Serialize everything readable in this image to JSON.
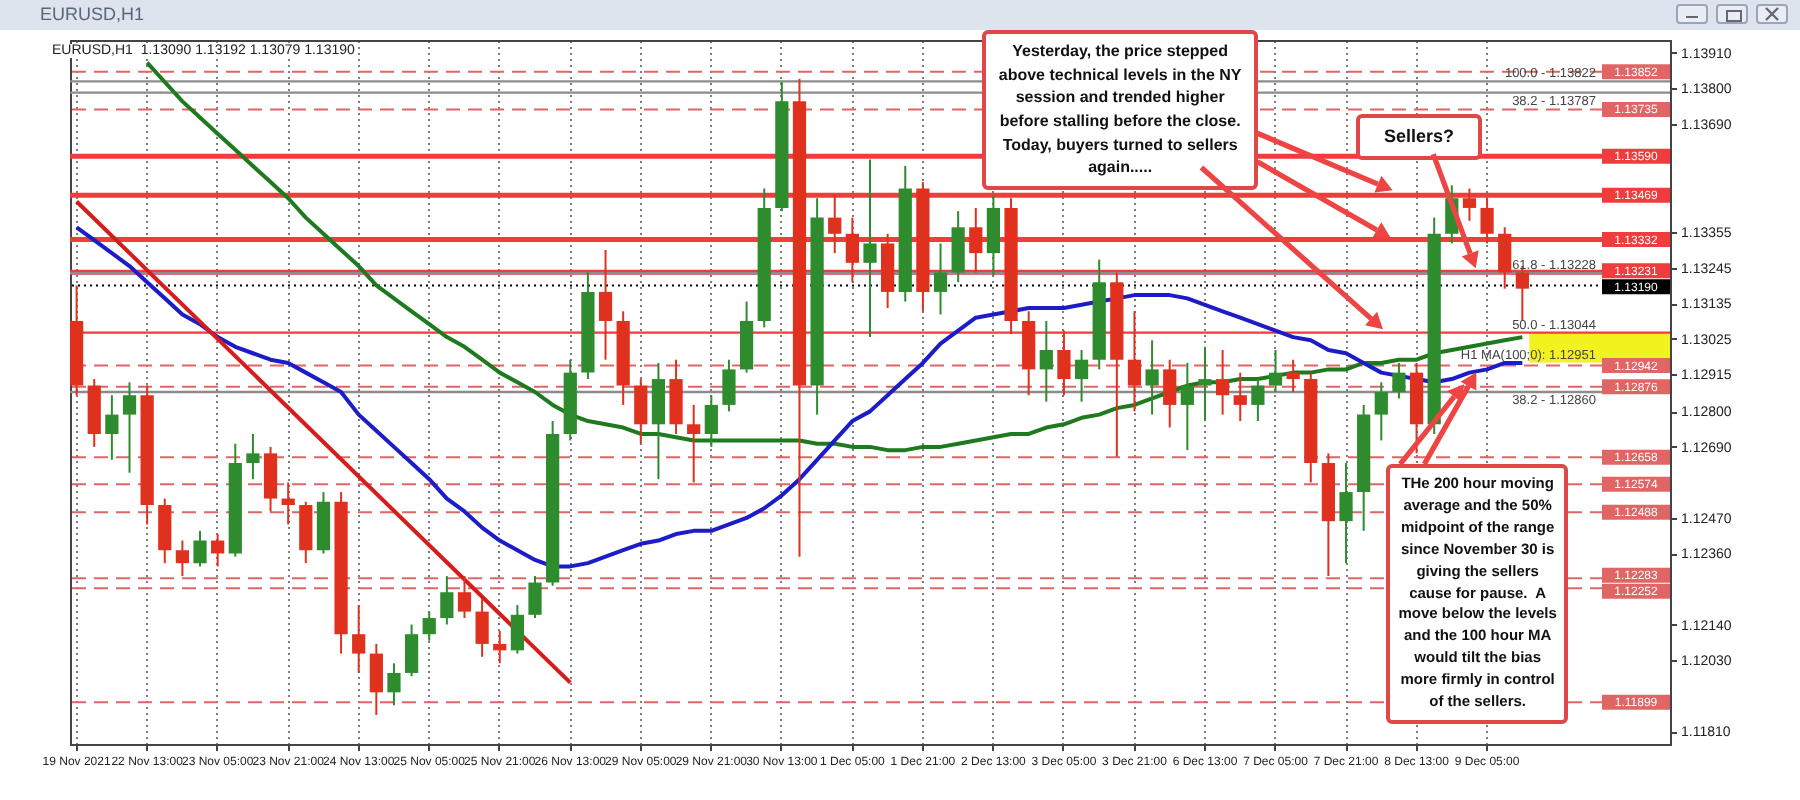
{
  "chart_data": {
    "type": "candlestick",
    "title": "EURUSD,H1",
    "subtitle": "EURUSD,H1  1.13090 1.13192 1.13079 1.13190",
    "categories": [
      "19 Nov 2021",
      null,
      null,
      null,
      "22 Nov 13:00",
      null,
      null,
      null,
      "23 Nov 05:00",
      null,
      null,
      null,
      "23 Nov 21:00",
      null,
      null,
      null,
      "24 Nov 13:00",
      null,
      null,
      null,
      "25 Nov 05:00",
      null,
      null,
      null,
      "25 Nov 21:00",
      null,
      null,
      null,
      "26 Nov 13:00",
      null,
      null,
      null,
      "29 Nov 05:00",
      null,
      null,
      null,
      "29 Nov 21:00",
      null,
      null,
      null,
      "30 Nov 13:00",
      null,
      null,
      null,
      "1 Dec 05:00",
      null,
      null,
      null,
      "1 Dec 21:00",
      null,
      null,
      null,
      "2 Dec 13:00",
      null,
      null,
      null,
      "3 Dec 05:00",
      null,
      null,
      null,
      "3 Dec 21:00",
      null,
      null,
      null,
      "6 Dec 13:00",
      null,
      null,
      null,
      "7 Dec 05:00",
      null,
      null,
      null,
      "7 Dec 21:00",
      null,
      null,
      null,
      "8 Dec 13:00",
      null,
      null,
      null,
      "9 Dec 05:00",
      null,
      null,
      null,
      null,
      null,
      null,
      null,
      null,
      null,
      null
    ],
    "ohlc": [
      [
        1.1308,
        1.1319,
        1.1285,
        1.1288
      ],
      [
        1.1288,
        1.129,
        1.1269,
        1.1273
      ],
      [
        1.1273,
        1.1285,
        1.1265,
        1.1279
      ],
      [
        1.1279,
        1.1289,
        1.1261,
        1.1285
      ],
      [
        1.1285,
        1.1288,
        1.1245,
        1.1251
      ],
      [
        1.1251,
        1.1253,
        1.1233,
        1.1237
      ],
      [
        1.1237,
        1.124,
        1.1229,
        1.1233
      ],
      [
        1.1233,
        1.1243,
        1.1232,
        1.124
      ],
      [
        1.124,
        1.1242,
        1.1232,
        1.1236
      ],
      [
        1.1236,
        1.127,
        1.1235,
        1.1264
      ],
      [
        1.1264,
        1.1273,
        1.1259,
        1.1267
      ],
      [
        1.1267,
        1.1269,
        1.1249,
        1.1253
      ],
      [
        1.1253,
        1.1258,
        1.1245,
        1.1251
      ],
      [
        1.1251,
        1.1252,
        1.1233,
        1.1237
      ],
      [
        1.1237,
        1.1255,
        1.1236,
        1.1252
      ],
      [
        1.1252,
        1.1255,
        1.1205,
        1.1211
      ],
      [
        1.1211,
        1.122,
        1.1199,
        1.1205
      ],
      [
        1.1205,
        1.1208,
        1.1186,
        1.1193
      ],
      [
        1.1193,
        1.1202,
        1.1189,
        1.1199
      ],
      [
        1.1199,
        1.1214,
        1.1198,
        1.1211
      ],
      [
        1.1211,
        1.1218,
        1.1209,
        1.1216
      ],
      [
        1.1216,
        1.1229,
        1.1214,
        1.1224
      ],
      [
        1.1224,
        1.1229,
        1.1216,
        1.1218
      ],
      [
        1.1218,
        1.1222,
        1.1204,
        1.1208
      ],
      [
        1.1208,
        1.1212,
        1.1202,
        1.1206
      ],
      [
        1.1206,
        1.122,
        1.1205,
        1.1217
      ],
      [
        1.1217,
        1.1229,
        1.1216,
        1.1227
      ],
      [
        1.1227,
        1.1277,
        1.1226,
        1.1273
      ],
      [
        1.1273,
        1.1296,
        1.1271,
        1.1292
      ],
      [
        1.1292,
        1.1323,
        1.129,
        1.1317
      ],
      [
        1.1317,
        1.133,
        1.1296,
        1.1308
      ],
      [
        1.1308,
        1.1311,
        1.1282,
        1.1288
      ],
      [
        1.1288,
        1.129,
        1.127,
        1.1276
      ],
      [
        1.1276,
        1.1295,
        1.1259,
        1.129
      ],
      [
        1.129,
        1.1296,
        1.1273,
        1.1276
      ],
      [
        1.1276,
        1.1282,
        1.1258,
        1.1273
      ],
      [
        1.1273,
        1.1285,
        1.1269,
        1.1282
      ],
      [
        1.1282,
        1.1296,
        1.128,
        1.1293
      ],
      [
        1.1293,
        1.1314,
        1.1292,
        1.1308
      ],
      [
        1.1308,
        1.1349,
        1.1306,
        1.1343
      ],
      [
        1.1343,
        1.1382,
        1.1342,
        1.1376
      ],
      [
        1.1376,
        1.1383,
        1.1235,
        1.1288
      ],
      [
        1.1288,
        1.1346,
        1.1279,
        1.134
      ],
      [
        1.134,
        1.1347,
        1.1329,
        1.1335
      ],
      [
        1.1335,
        1.134,
        1.132,
        1.1326
      ],
      [
        1.1326,
        1.1358,
        1.1303,
        1.1332
      ],
      [
        1.1332,
        1.1335,
        1.1312,
        1.1317
      ],
      [
        1.1317,
        1.1356,
        1.1314,
        1.1349
      ],
      [
        1.1349,
        1.1351,
        1.1311,
        1.1317
      ],
      [
        1.1317,
        1.1332,
        1.131,
        1.1323
      ],
      [
        1.1323,
        1.1342,
        1.132,
        1.1337
      ],
      [
        1.1337,
        1.1343,
        1.1323,
        1.1329
      ],
      [
        1.1329,
        1.1347,
        1.1322,
        1.1343
      ],
      [
        1.1343,
        1.1346,
        1.1304,
        1.1308
      ],
      [
        1.1308,
        1.1311,
        1.1285,
        1.1293
      ],
      [
        1.1293,
        1.1308,
        1.1283,
        1.1299
      ],
      [
        1.1299,
        1.1305,
        1.1285,
        1.129
      ],
      [
        1.129,
        1.1299,
        1.1283,
        1.1296
      ],
      [
        1.1296,
        1.1327,
        1.1293,
        1.132
      ],
      [
        1.132,
        1.1323,
        1.1266,
        1.1296
      ],
      [
        1.1296,
        1.1311,
        1.128,
        1.1288
      ],
      [
        1.1288,
        1.1302,
        1.1279,
        1.1293
      ],
      [
        1.1293,
        1.1296,
        1.1275,
        1.1282
      ],
      [
        1.1282,
        1.1295,
        1.1268,
        1.1288
      ],
      [
        1.1288,
        1.13,
        1.1277,
        1.129
      ],
      [
        1.129,
        1.1299,
        1.1279,
        1.1285
      ],
      [
        1.1285,
        1.1292,
        1.1277,
        1.1282
      ],
      [
        1.1282,
        1.129,
        1.1277,
        1.1288
      ],
      [
        1.1288,
        1.1299,
        1.1286,
        1.1292
      ],
      [
        1.1292,
        1.1296,
        1.1286,
        1.129
      ],
      [
        1.129,
        1.1292,
        1.1258,
        1.1264
      ],
      [
        1.1264,
        1.1267,
        1.1229,
        1.1246
      ],
      [
        1.1246,
        1.1264,
        1.1233,
        1.1255
      ],
      [
        1.1255,
        1.1282,
        1.1243,
        1.1279
      ],
      [
        1.1279,
        1.1289,
        1.1271,
        1.1286
      ],
      [
        1.1286,
        1.1295,
        1.1284,
        1.1292
      ],
      [
        1.1292,
        1.1295,
        1.1267,
        1.1276
      ],
      [
        1.1276,
        1.134,
        1.1273,
        1.1335
      ],
      [
        1.1335,
        1.135,
        1.1332,
        1.1346
      ],
      [
        1.1346,
        1.1349,
        1.1339,
        1.1343
      ],
      [
        1.1343,
        1.1346,
        1.1332,
        1.1335
      ],
      [
        1.1335,
        1.1337,
        1.1318,
        1.1323
      ],
      [
        1.1323,
        1.1325,
        1.1308,
        1.1318
      ],
      null,
      null,
      null,
      null,
      null,
      null,
      null,
      null
    ],
    "series": [
      {
        "type": "line",
        "color": "#1f7a1f",
        "values": [
          null,
          null,
          null,
          null,
          1.1388,
          1.1382,
          1.1376,
          1.1371,
          1.1366,
          1.1361,
          1.1356,
          1.1351,
          1.1346,
          1.134,
          1.1335,
          1.133,
          1.1325,
          1.1319,
          1.1315,
          1.1311,
          1.1307,
          1.1303,
          1.13,
          1.1296,
          1.1292,
          1.1289,
          1.1286,
          1.1282,
          1.1279,
          1.1277,
          1.1276,
          1.1275,
          1.1273,
          1.1273,
          1.1272,
          1.1271,
          1.1271,
          1.1271,
          1.1271,
          1.1271,
          1.1271,
          1.1271,
          1.127,
          1.127,
          1.1269,
          1.1269,
          1.1268,
          1.1268,
          1.1269,
          1.1269,
          1.127,
          1.1271,
          1.1272,
          1.1273,
          1.1273,
          1.1275,
          1.1276,
          1.1278,
          1.1279,
          1.1281,
          1.1282,
          1.1284,
          1.1286,
          1.1288,
          1.1289,
          1.1289,
          1.129,
          1.129,
          1.1291,
          1.1292,
          1.1292,
          1.1293,
          1.1293,
          1.1295,
          1.1295,
          1.1296,
          1.1296,
          1.1298,
          1.1299,
          1.13,
          1.1301,
          1.1302,
          1.1303,
          null,
          null,
          null,
          null,
          null,
          null,
          null,
          null
        ]
      },
      {
        "type": "line",
        "color": "#1c1cc8",
        "values": [
          1.1337,
          1.1333,
          1.1329,
          1.1325,
          1.132,
          1.1315,
          1.131,
          1.1307,
          1.1303,
          1.13,
          1.1298,
          1.1296,
          1.1295,
          1.1292,
          1.1289,
          1.1286,
          1.1279,
          1.1274,
          1.1269,
          1.1264,
          1.1259,
          1.1253,
          1.1249,
          1.1244,
          1.124,
          1.1237,
          1.1234,
          1.1232,
          1.1232,
          1.1233,
          1.1235,
          1.1237,
          1.1239,
          1.124,
          1.1242,
          1.1243,
          1.1243,
          1.1245,
          1.1247,
          1.125,
          1.1254,
          1.1259,
          1.1265,
          1.1271,
          1.1277,
          1.128,
          1.1285,
          1.129,
          1.1295,
          1.1301,
          1.1305,
          1.1309,
          1.131,
          1.1311,
          1.1312,
          1.1312,
          1.1312,
          1.1313,
          1.1314,
          1.1315,
          1.1316,
          1.1316,
          1.1316,
          1.1315,
          1.1313,
          1.1311,
          1.1309,
          1.1307,
          1.1305,
          1.1303,
          1.1302,
          1.1299,
          1.1298,
          1.1295,
          1.1292,
          1.1291,
          1.129,
          1.1289,
          1.129,
          1.1292,
          1.1293,
          1.1295,
          1.1295,
          null,
          null,
          null,
          null,
          null,
          null,
          null,
          null
        ]
      },
      {
        "type": "line",
        "color": "#d81c1c",
        "x": [
          "19 Nov 2021",
          "26 Nov 13:00"
        ],
        "values": [
          1.1345,
          1.1196
        ]
      }
    ],
    "ylim": [
      1.1177,
      1.1395
    ],
    "yticks": [
      {
        "value": 1.1391,
        "label": "1.13910"
      },
      {
        "value": 1.138,
        "label": "1.13800"
      },
      {
        "value": 1.1369,
        "label": "1.13690"
      },
      {
        "value": 1.13355,
        "label": "1.13355"
      },
      {
        "value": 1.13245,
        "label": "1.13245"
      },
      {
        "value": 1.13135,
        "label": "1.13135"
      },
      {
        "value": 1.13025,
        "label": "1.13025"
      },
      {
        "value": 1.12915,
        "label": "1.12915"
      },
      {
        "value": 1.128,
        "label": "1.12800"
      },
      {
        "value": 1.1269,
        "label": "1.12690"
      },
      {
        "value": 1.1247,
        "label": "1.12470"
      },
      {
        "value": 1.1236,
        "label": "1.12360"
      },
      {
        "value": 1.1214,
        "label": "1.12140"
      },
      {
        "value": 1.1203,
        "label": "1.12030"
      },
      {
        "value": 1.1181,
        "label": "1.11810"
      }
    ],
    "grid": "x",
    "ref_lines": [
      {
        "axis": "y",
        "value": 1.13852,
        "label": "1.13852",
        "color": "#e06666",
        "line_style": "dashed"
      },
      {
        "axis": "y",
        "value": 1.13735,
        "label": "1.13735",
        "color": "#e06666",
        "line_style": "dashed"
      },
      {
        "axis": "y",
        "value": 1.1359,
        "label": "1.13590",
        "color": "#f03c3c",
        "line_style": "solid"
      },
      {
        "axis": "y",
        "value": 1.13469,
        "label": "1.13469",
        "color": "#f03c3c",
        "line_style": "solid"
      },
      {
        "axis": "y",
        "value": 1.13332,
        "label": "1.13332",
        "color": "#f03c3c",
        "line_style": "solid"
      },
      {
        "axis": "y",
        "value": 1.13231,
        "label": "1.13231",
        "color": "#f03c3c",
        "line_style": "solid"
      },
      {
        "axis": "y",
        "value": 1.1319,
        "label": "1.13190",
        "color": "#000000",
        "line_style": "dotted"
      },
      {
        "axis": "y",
        "value": 1.12942,
        "label": "1.12942",
        "color": "#e06666",
        "line_style": "dashed"
      },
      {
        "axis": "y",
        "value": 1.12876,
        "label": "1.12876",
        "color": "#e06666",
        "line_style": "dashed"
      },
      {
        "axis": "y",
        "value": 1.12658,
        "label": "1.12658",
        "color": "#e06666",
        "line_style": "dashed"
      },
      {
        "axis": "y",
        "value": 1.12574,
        "label": "1.12574",
        "color": "#e06666",
        "line_style": "dashed"
      },
      {
        "axis": "y",
        "value": 1.12488,
        "label": "1.12488",
        "color": "#e06666",
        "line_style": "dashed"
      },
      {
        "axis": "y",
        "value": 1.12283,
        "label": "1.12283",
        "color": "#e06666",
        "line_style": "dashed"
      },
      {
        "axis": "y",
        "value": 1.12252,
        "label": "1.12252",
        "color": "#e06666",
        "line_style": "dashed"
      },
      {
        "axis": "y",
        "value": 1.11899,
        "label": "1.11899",
        "color": "#e06666",
        "line_style": "dashed"
      },
      {
        "axis": "y",
        "value": 1.13822,
        "color": "#8c8c8c",
        "line_style": "solid"
      },
      {
        "axis": "y",
        "value": 1.13787,
        "color": "#8c8c8c",
        "line_style": "solid"
      },
      {
        "axis": "y",
        "value": 1.13228,
        "color": "#8c8c8c",
        "line_style": "solid"
      },
      {
        "axis": "y",
        "value": 1.13044,
        "color": "#f03c3c",
        "line_style": "solid"
      },
      {
        "axis": "y",
        "value": 1.1286,
        "color": "#8c8c8c",
        "line_style": "solid"
      }
    ],
    "bands": [
      {
        "axis": "y",
        "from": 1.12951,
        "to": 1.13044,
        "color": "#f2f21e"
      }
    ],
    "annotations": [
      {
        "text": "100.0 - 1.13822",
        "y": 1.13822
      },
      {
        "text": "38.2 - 1.13787",
        "y": 1.13787
      },
      {
        "text": "61.8 - 1.13228",
        "y": 1.13228
      },
      {
        "text": "50.0 - 1.13044",
        "y": 1.13044
      },
      {
        "text": "H1 MA(100;0): 1.12951",
        "y": 1.12951
      },
      {
        "text": "38.2 - 1.12860",
        "y": 1.1286
      },
      "Yesterday, the price stepped above technical levels in the NY session and trended higher before stalling before the close. Today, buyers turned to sellers again.....",
      "Sellers?",
      "THe 200 hour moving average and the 50% midpoint of the range since November 30 is giving the sellers cause for pause.  A move below the levels and the 100 hour MA would tilt the bias more firmly in control of the sellers."
    ]
  }
}
